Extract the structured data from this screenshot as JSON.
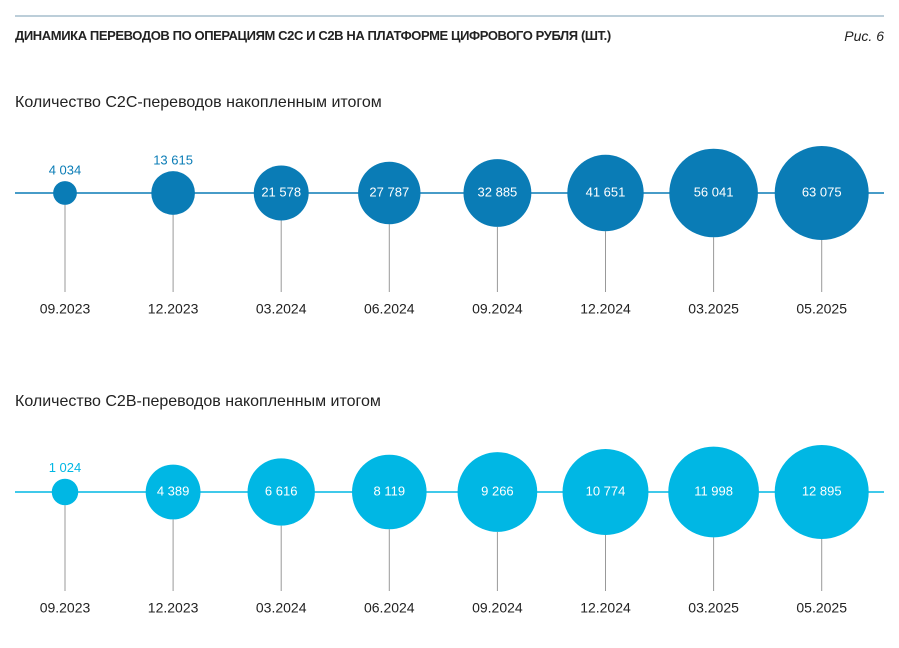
{
  "title": "ДИНАМИКА ПЕРЕВОДОВ ПО ОПЕРАЦИЯМ С2С И С2В НА ПЛАТФОРМЕ ЦИФРОВОГО РУБЛЯ (ШТ.)",
  "figure_label": "Рис. 6",
  "chart_data": [
    {
      "type": "bubble",
      "title": "Количество С2С-переводов накопленным итогом",
      "categories": [
        "09.2023",
        "12.2023",
        "03.2024",
        "06.2024",
        "09.2024",
        "12.2024",
        "03.2025",
        "05.2025"
      ],
      "values": [
        4034,
        13615,
        21578,
        27787,
        32885,
        41651,
        56041,
        63075
      ],
      "value_labels": [
        "4 034",
        "13 615",
        "21 578",
        "27 787",
        "32 885",
        "41 651",
        "56 041",
        "63 075"
      ],
      "color": "#0a7cb6"
    },
    {
      "type": "bubble",
      "title": "Количество С2В-переводов накопленным итогом",
      "categories": [
        "09.2023",
        "12.2023",
        "03.2024",
        "06.2024",
        "09.2024",
        "12.2024",
        "03.2025",
        "05.2025"
      ],
      "values": [
        1024,
        4389,
        6616,
        8119,
        9266,
        10774,
        11998,
        12895
      ],
      "value_labels": [
        "1 024",
        "4 389",
        "6 616",
        "8 119",
        "9 266",
        "10 774",
        "11 998",
        "12 895"
      ],
      "color": "#00b7e4"
    }
  ]
}
